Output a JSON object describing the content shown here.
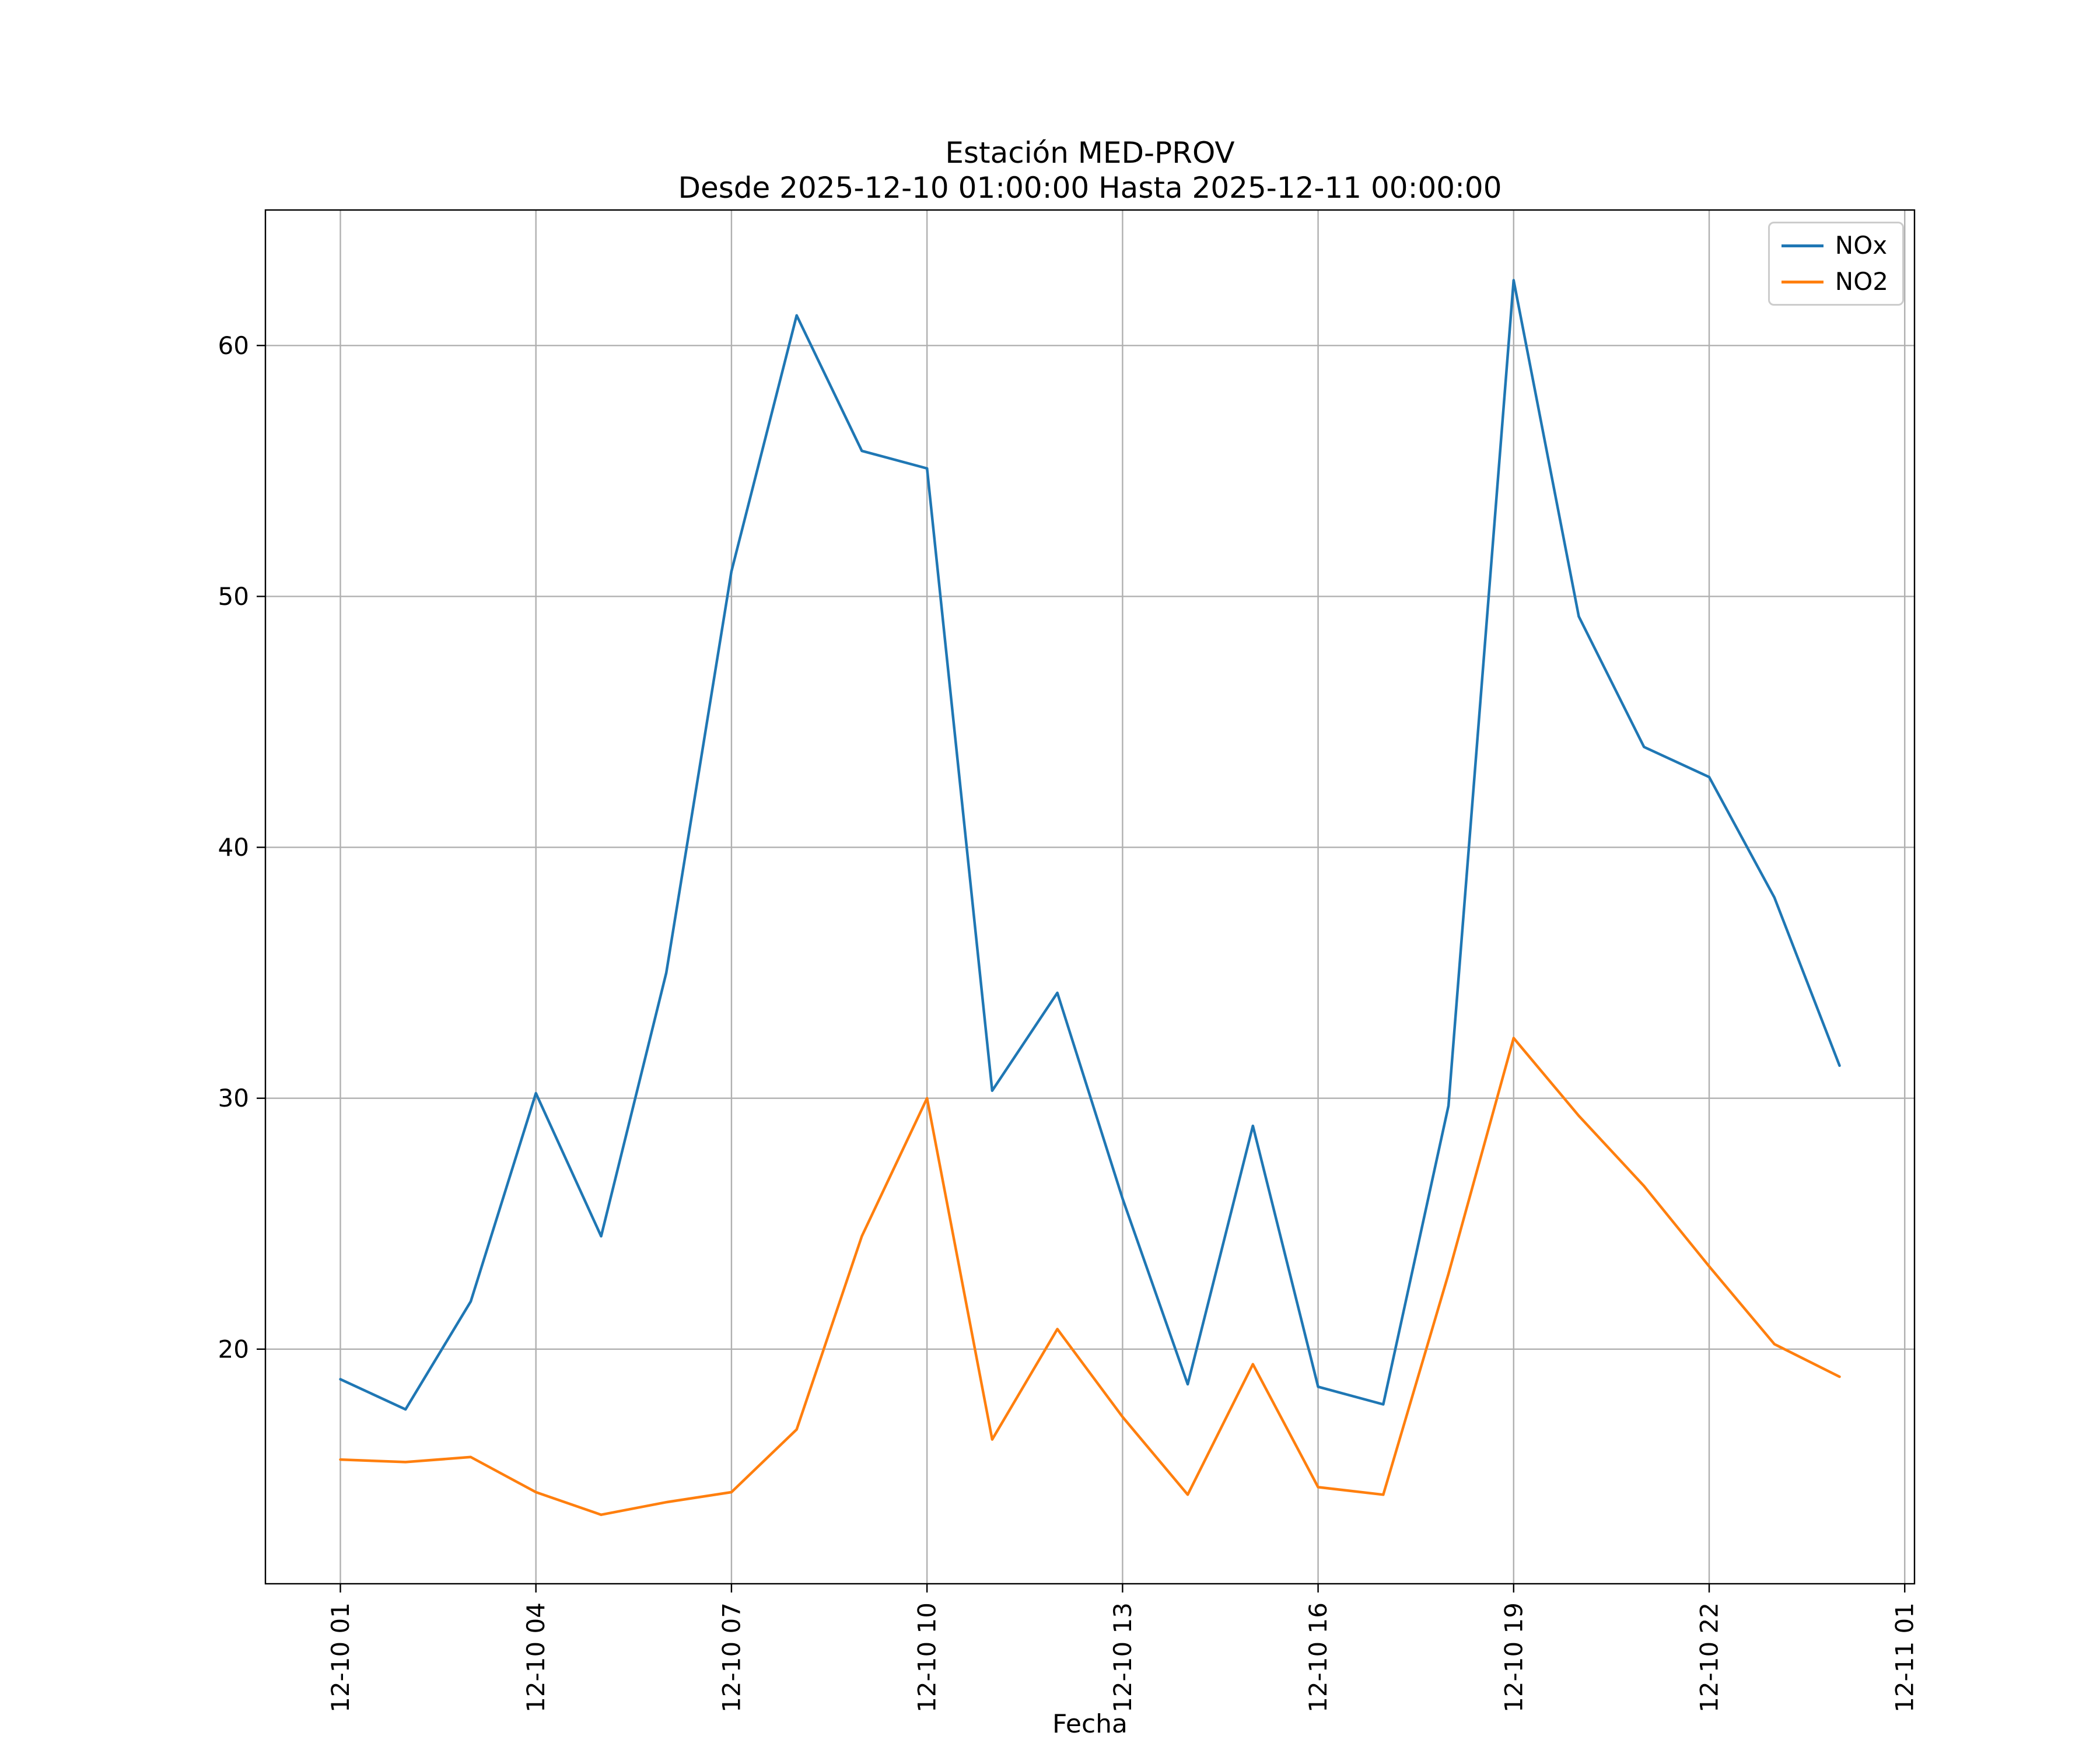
{
  "title": "Estación MED-PROV",
  "subtitle": "Desde 2025-12-10 01:00:00 Hasta 2025-12-11 00:00:00",
  "xlabel": "Fecha",
  "chart_data": {
    "type": "line",
    "title": "Estación MED-PROV",
    "subtitle": "Desde 2025-12-10 01:00:00 Hasta 2025-12-11 00:00:00",
    "xlabel": "Fecha",
    "ylabel": "",
    "grid": true,
    "legend_position": "upper right",
    "xlim": [
      -0.15,
      25.15
    ],
    "ylim": [
      10.65,
      65.4
    ],
    "y_ticks": [
      20,
      30,
      40,
      50,
      60
    ],
    "x_tick_hours": [
      1,
      4,
      7,
      10,
      13,
      16,
      19,
      22,
      25
    ],
    "x_tick_labels": [
      "12-10 01",
      "12-10 04",
      "12-10 07",
      "12-10 10",
      "12-10 13",
      "12-10 16",
      "12-10 19",
      "12-10 22",
      "12-11 01"
    ],
    "x_hours": [
      1,
      2,
      3,
      4,
      5,
      6,
      7,
      8,
      9,
      10,
      11,
      12,
      13,
      14,
      15,
      16,
      17,
      18,
      19,
      20,
      21,
      22,
      23,
      24
    ],
    "series": [
      {
        "name": "NOx",
        "color": "#1f77b4",
        "values": [
          18.8,
          17.6,
          21.9,
          30.2,
          24.5,
          35.0,
          51.0,
          61.2,
          55.8,
          55.1,
          30.3,
          34.2,
          26.0,
          18.6,
          28.9,
          18.5,
          17.8,
          29.7,
          62.6,
          49.2,
          44.0,
          42.8,
          38.0,
          31.3
        ]
      },
      {
        "name": "NO2",
        "color": "#ff7f0e",
        "values": [
          15.6,
          15.5,
          15.7,
          14.3,
          13.4,
          13.9,
          14.3,
          16.8,
          24.5,
          30.0,
          16.4,
          20.8,
          17.3,
          14.2,
          19.4,
          14.5,
          14.2,
          23.0,
          32.4,
          29.3,
          26.5,
          23.3,
          20.2,
          18.9
        ]
      }
    ],
    "grid_color": "#b0b0b0",
    "frame_color": "#000000"
  }
}
